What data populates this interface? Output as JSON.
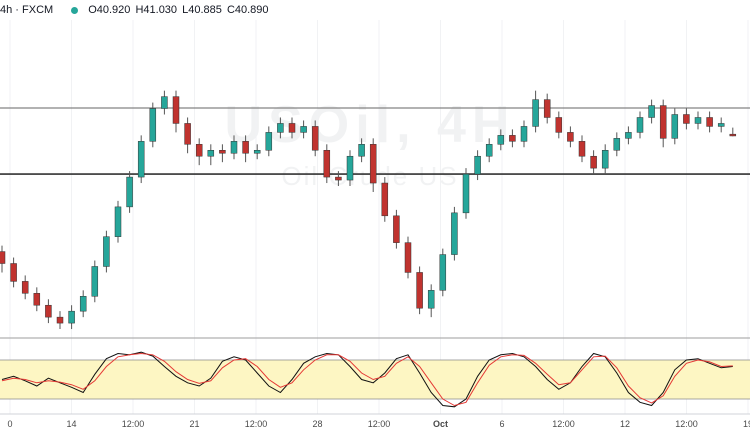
{
  "header": {
    "symbol": "4h · FXCM",
    "status_color": "#26a69a",
    "open": "O40.920",
    "high": "H41.030",
    "low": "L40.885",
    "close": "C40.890"
  },
  "watermark": {
    "line1": "USOil, 4H",
    "line2": "Oil Crude US"
  },
  "colors": {
    "up": "#26a69a",
    "down": "#c0332f",
    "k_line": "#111111",
    "d_line": "#e53935",
    "osc_band": "#fdf6c3"
  },
  "chart_data": [
    {
      "type": "candlestick",
      "x_axis_ticks": [
        "0",
        "14",
        "12:00",
        "21",
        "12:00",
        "28",
        "12:00",
        "Oct",
        "6",
        "12:00",
        "12",
        "12:00",
        "19"
      ],
      "ylim": [
        37.5,
        42.5
      ],
      "horizontal_levels": [
        41.36,
        40.25
      ],
      "last_close": 40.89,
      "candles": [
        [
          38.95,
          38.75,
          39.05,
          38.6
        ],
        [
          38.75,
          38.45,
          38.85,
          38.35
        ],
        [
          38.45,
          38.25,
          38.55,
          38.15
        ],
        [
          38.25,
          38.05,
          38.35,
          37.95
        ],
        [
          38.05,
          37.85,
          38.15,
          37.75
        ],
        [
          37.85,
          37.75,
          37.95,
          37.65
        ],
        [
          37.75,
          37.95,
          38.05,
          37.65
        ],
        [
          37.95,
          38.2,
          38.3,
          37.85
        ],
        [
          38.2,
          38.7,
          38.8,
          38.1
        ],
        [
          38.7,
          39.2,
          39.3,
          38.6
        ],
        [
          39.2,
          39.7,
          39.8,
          39.1
        ],
        [
          39.7,
          40.2,
          40.3,
          39.6
        ],
        [
          40.2,
          40.8,
          40.9,
          40.1
        ],
        [
          40.8,
          41.35,
          41.45,
          40.7
        ],
        [
          41.35,
          41.55,
          41.65,
          41.25
        ],
        [
          41.55,
          41.1,
          41.65,
          40.95
        ],
        [
          41.1,
          40.75,
          41.2,
          40.6
        ],
        [
          40.75,
          40.55,
          40.85,
          40.4
        ],
        [
          40.55,
          40.65,
          40.75,
          40.4
        ],
        [
          40.65,
          40.6,
          40.75,
          40.45
        ],
        [
          40.6,
          40.8,
          40.9,
          40.5
        ],
        [
          40.8,
          40.6,
          40.9,
          40.45
        ],
        [
          40.6,
          40.65,
          40.75,
          40.5
        ],
        [
          40.65,
          40.95,
          41.05,
          40.55
        ],
        [
          40.95,
          41.1,
          41.2,
          40.85
        ],
        [
          41.1,
          40.95,
          41.2,
          40.85
        ],
        [
          40.95,
          41.05,
          41.15,
          40.85
        ],
        [
          41.05,
          40.65,
          41.15,
          40.55
        ],
        [
          40.65,
          40.2,
          40.75,
          40.1
        ],
        [
          40.2,
          40.15,
          40.3,
          40.05
        ],
        [
          40.15,
          40.55,
          40.65,
          40.05
        ],
        [
          40.55,
          40.75,
          40.85,
          40.45
        ],
        [
          40.75,
          40.1,
          40.85,
          39.95
        ],
        [
          40.1,
          39.55,
          40.2,
          39.45
        ],
        [
          39.55,
          39.1,
          39.65,
          39.0
        ],
        [
          39.1,
          38.6,
          39.2,
          38.5
        ],
        [
          38.6,
          38.0,
          38.7,
          37.9
        ],
        [
          38.0,
          38.3,
          38.4,
          37.85
        ],
        [
          38.3,
          38.9,
          39.0,
          38.2
        ],
        [
          38.9,
          39.6,
          39.7,
          38.8
        ],
        [
          39.6,
          40.25,
          40.35,
          39.5
        ],
        [
          40.25,
          40.55,
          40.65,
          40.15
        ],
        [
          40.55,
          40.75,
          40.85,
          40.45
        ],
        [
          40.75,
          40.9,
          41.0,
          40.65
        ],
        [
          40.9,
          40.8,
          41.0,
          40.7
        ],
        [
          40.8,
          41.05,
          41.15,
          40.7
        ],
        [
          41.05,
          41.5,
          41.65,
          40.95
        ],
        [
          41.5,
          41.2,
          41.6,
          41.1
        ],
        [
          41.2,
          40.95,
          41.3,
          40.85
        ],
        [
          40.95,
          40.8,
          41.05,
          40.7
        ],
        [
          40.8,
          40.55,
          40.9,
          40.45
        ],
        [
          40.55,
          40.35,
          40.65,
          40.25
        ],
        [
          40.35,
          40.65,
          40.75,
          40.25
        ],
        [
          40.65,
          40.85,
          40.95,
          40.55
        ],
        [
          40.85,
          40.95,
          41.05,
          40.75
        ],
        [
          40.95,
          41.2,
          41.3,
          40.85
        ],
        [
          41.2,
          41.4,
          41.5,
          41.1
        ],
        [
          41.4,
          40.85,
          41.5,
          40.7
        ],
        [
          40.85,
          41.25,
          41.35,
          40.75
        ],
        [
          41.25,
          41.1,
          41.35,
          41.0
        ],
        [
          41.1,
          41.2,
          41.3,
          41.0
        ],
        [
          41.2,
          41.05,
          41.3,
          40.95
        ],
        [
          41.05,
          41.1,
          41.2,
          40.95
        ],
        [
          40.92,
          40.89,
          41.03,
          40.885
        ]
      ]
    },
    {
      "type": "line",
      "name": "stochastic",
      "ylim": [
        0,
        100
      ],
      "bands": [
        80,
        20
      ],
      "series": [
        {
          "name": "%K",
          "values": [
            50,
            55,
            48,
            40,
            52,
            45,
            38,
            30,
            58,
            82,
            90,
            88,
            92,
            86,
            70,
            55,
            45,
            40,
            52,
            78,
            85,
            80,
            60,
            40,
            30,
            50,
            75,
            85,
            90,
            88,
            70,
            50,
            45,
            60,
            82,
            88,
            60,
            30,
            10,
            8,
            20,
            55,
            80,
            88,
            90,
            85,
            70,
            50,
            35,
            45,
            70,
            90,
            85,
            60,
            30,
            15,
            10,
            30,
            65,
            80,
            82,
            75,
            68,
            70
          ]
        },
        {
          "name": "%D",
          "values": [
            48,
            52,
            50,
            45,
            48,
            46,
            42,
            35,
            48,
            70,
            85,
            88,
            90,
            88,
            78,
            62,
            50,
            44,
            48,
            68,
            80,
            82,
            70,
            50,
            38,
            45,
            65,
            80,
            88,
            88,
            78,
            60,
            50,
            55,
            75,
            85,
            70,
            45,
            20,
            10,
            15,
            45,
            72,
            85,
            88,
            87,
            75,
            58,
            42,
            45,
            65,
            85,
            86,
            68,
            40,
            22,
            14,
            25,
            55,
            75,
            80,
            77,
            70,
            71
          ]
        }
      ]
    }
  ]
}
